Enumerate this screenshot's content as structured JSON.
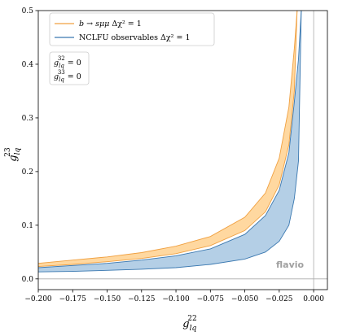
{
  "chart_data": {
    "type": "area",
    "title": "",
    "xlabel": "g_lq^22",
    "ylabel": "g_lq^23",
    "xlim": [
      -0.2,
      0.01
    ],
    "ylim": [
      -0.02,
      0.5
    ],
    "xticks": [
      -0.2,
      -0.175,
      -0.15,
      -0.125,
      -0.1,
      -0.075,
      -0.05,
      -0.025,
      0.0
    ],
    "xtick_labels": [
      "−0.200",
      "−0.175",
      "−0.150",
      "−0.125",
      "−0.100",
      "−0.075",
      "−0.050",
      "−0.025",
      "0.000"
    ],
    "yticks": [
      0.0,
      0.1,
      0.2,
      0.3,
      0.4,
      0.5
    ],
    "ytick_labels": [
      "0.0",
      "0.1",
      "0.2",
      "0.3",
      "0.4",
      "0.5"
    ],
    "grid": false,
    "legend_position": "top-left",
    "series": [
      {
        "name": "b → sμμ Δχ² = 1",
        "color": "#f0a040",
        "fill": "#ffd8a0",
        "x": [
          -0.2,
          -0.175,
          -0.15,
          -0.125,
          -0.1,
          -0.075,
          -0.05,
          -0.035,
          -0.025,
          -0.018,
          -0.014,
          -0.012
        ],
        "y_upper": [
          0.029,
          0.035,
          0.041,
          0.049,
          0.061,
          0.079,
          0.115,
          0.16,
          0.225,
          0.32,
          0.43,
          0.5
        ],
        "y_lower": [
          0.023,
          0.027,
          0.032,
          0.038,
          0.047,
          0.062,
          0.09,
          0.125,
          0.175,
          0.25,
          0.35,
          0.5
        ]
      },
      {
        "name": "NCLFU observables Δχ² = 1",
        "color": "#3a78b0",
        "fill": "#b4cfe6",
        "x": [
          -0.2,
          -0.175,
          -0.15,
          -0.125,
          -0.1,
          -0.075,
          -0.05,
          -0.035,
          -0.025,
          -0.018,
          -0.014,
          -0.011,
          -0.009
        ],
        "y_upper": [
          0.021,
          0.025,
          0.029,
          0.035,
          0.043,
          0.056,
          0.083,
          0.118,
          0.165,
          0.235,
          0.33,
          0.41,
          0.5
        ],
        "y_lower": [
          0.013,
          0.014,
          0.016,
          0.018,
          0.021,
          0.027,
          0.037,
          0.05,
          0.07,
          0.1,
          0.15,
          0.22,
          0.5
        ]
      }
    ],
    "annotations": {
      "couplings": [
        "g_lq^32 = 0",
        "g_lq^33 = 0"
      ],
      "watermark": "flavio"
    },
    "reference_lines": {
      "x": 0.0,
      "y": 0.0,
      "color": "#aaaaaa"
    }
  },
  "legend": {
    "entry_1": {
      "label_main": "b → sμμ ",
      "label_suffix": "Δχ² = 1"
    },
    "entry_2": {
      "label_main": "NCLFU observables ",
      "label_suffix": "Δχ² = 1"
    }
  },
  "axes": {
    "xlabel_base": "g",
    "xlabel_sub": "lq",
    "xlabel_sup": "22",
    "ylabel_base": "g",
    "ylabel_sub": "lq",
    "ylabel_sup": "23"
  },
  "note": {
    "line1_base": "g",
    "line1_sub": "lq",
    "line1_sup": "32",
    "line1_tail": " = 0",
    "line2_base": "g",
    "line2_sub": "lq",
    "line2_sup": "33",
    "line2_tail": " = 0"
  },
  "watermark": "flavio"
}
